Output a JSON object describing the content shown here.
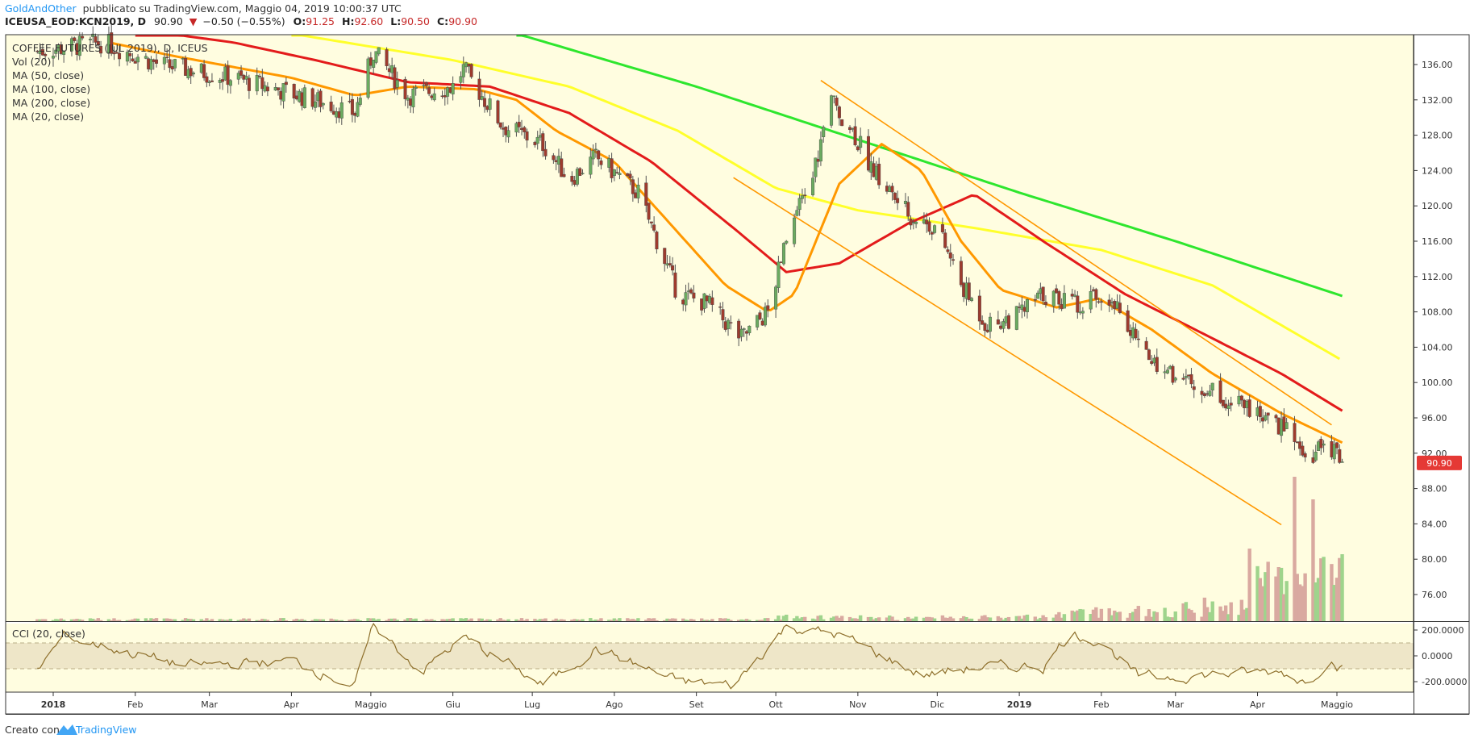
{
  "header": {
    "author": "GoldAndOther",
    "published_text": "pubblicato su TradingView.com, Maggio 04, 2019 10:00:37 UTC",
    "symbol": "ICEUSA_EOD:KCN2019, D",
    "last": "90.90",
    "change": "−0.50 (−0.55%)",
    "open_label": "O:",
    "open": "91.25",
    "high_label": "H:",
    "high": "92.60",
    "low_label": "L:",
    "low": "90.50",
    "close_label": "C:",
    "close": "90.90"
  },
  "legend": {
    "title": "COFFEE FUTURES (JUL 2019), D, ICEUS",
    "items": [
      "Vol (20)",
      "MA (50, close)",
      "MA (100, close)",
      "MA (200, close)",
      "MA (20, close)"
    ]
  },
  "price_badge": "90.90",
  "cci_panel": {
    "label": "CCI (20, close)",
    "ticks": [
      "200.0000",
      "0.0000",
      "-200.0000"
    ]
  },
  "footer": {
    "created_with": "Creato con",
    "brand": "TradingView"
  },
  "colors": {
    "background": "#fffde0",
    "up_candle": "#6bab60",
    "down_candle": "#9e3b2e",
    "ma20": "#ff9800",
    "ma50": "#e31b1b",
    "ma100": "#ffff2b",
    "ma200": "#2ee62e",
    "cci_line": "#8d6e2a",
    "cci_band": "#eee6c8",
    "channel": "#ff9800",
    "volume_up": "#9fd48c",
    "volume_down": "#d9a9a0",
    "badge": "#e53935",
    "brand_blue": "#2196f3"
  },
  "chart_data": [
    {
      "type": "candlestick",
      "title": "COFFEE FUTURES (JUL 2019), D, ICEUS",
      "x_tick_labels": [
        "2018",
        "Feb",
        "Mar",
        "Apr",
        "Maggio",
        "Giu",
        "Lug",
        "Ago",
        "Set",
        "Ott",
        "Nov",
        "Dic",
        "2019",
        "Feb",
        "Mar",
        "Apr",
        "Maggio"
      ],
      "y_tick_labels": [
        "136.00",
        "132.00",
        "128.00",
        "124.00",
        "120.00",
        "116.00",
        "112.00",
        "108.00",
        "104.00",
        "100.00",
        "96.00",
        "92.00",
        "88.00",
        "84.00",
        "80.00",
        "76.00"
      ],
      "ylim": [
        73.5,
        139.5
      ],
      "price_path": [
        {
          "date": "2017-12-26",
          "close": 137.5
        },
        {
          "date": "2018-01-20",
          "close": 138.5
        },
        {
          "date": "2018-02-10",
          "close": 136
        },
        {
          "date": "2018-03-10",
          "close": 134.5
        },
        {
          "date": "2018-04-10",
          "close": 132
        },
        {
          "date": "2018-04-25",
          "close": 130.5
        },
        {
          "date": "2018-05-02",
          "close": 137.5
        },
        {
          "date": "2018-05-15",
          "close": 132.5
        },
        {
          "date": "2018-06-01",
          "close": 133.5
        },
        {
          "date": "2018-06-05",
          "close": 135.5
        },
        {
          "date": "2018-06-20",
          "close": 129
        },
        {
          "date": "2018-07-05",
          "close": 127
        },
        {
          "date": "2018-07-15",
          "close": 123
        },
        {
          "date": "2018-07-25",
          "close": 125.5
        },
        {
          "date": "2018-08-10",
          "close": 121.5
        },
        {
          "date": "2018-08-25",
          "close": 110
        },
        {
          "date": "2018-09-05",
          "close": 109
        },
        {
          "date": "2018-09-18",
          "close": 105
        },
        {
          "date": "2018-09-28",
          "close": 108
        },
        {
          "date": "2018-10-05",
          "close": 116
        },
        {
          "date": "2018-10-15",
          "close": 123.5
        },
        {
          "date": "2018-10-22",
          "close": 132
        },
        {
          "date": "2018-10-30",
          "close": 128.5
        },
        {
          "date": "2018-11-08",
          "close": 123.5
        },
        {
          "date": "2018-11-20",
          "close": 119
        },
        {
          "date": "2018-12-01",
          "close": 117.5
        },
        {
          "date": "2018-12-10",
          "close": 111
        },
        {
          "date": "2018-12-20",
          "close": 106.5
        },
        {
          "date": "2018-12-31",
          "close": 107.5
        },
        {
          "date": "2019-01-10",
          "close": 110
        },
        {
          "date": "2019-01-22",
          "close": 109
        },
        {
          "date": "2019-02-05",
          "close": 110
        },
        {
          "date": "2019-02-15",
          "close": 104
        },
        {
          "date": "2019-03-01",
          "close": 100.5
        },
        {
          "date": "2019-03-15",
          "close": 99
        },
        {
          "date": "2019-03-28",
          "close": 97
        },
        {
          "date": "2019-04-05",
          "close": 95.5
        },
        {
          "date": "2019-04-12",
          "close": 94.5
        },
        {
          "date": "2019-04-20",
          "close": 90.5
        },
        {
          "date": "2019-04-26",
          "close": 93
        },
        {
          "date": "2019-05-03",
          "close": 90.9
        }
      ],
      "moving_averages": {
        "MA (20, close)": [
          {
            "date": "2018-01-22",
            "value": 138.5
          },
          {
            "date": "2018-02-15",
            "value": 137
          },
          {
            "date": "2018-03-05",
            "value": 136
          },
          {
            "date": "2018-04-01",
            "value": 134.5
          },
          {
            "date": "2018-04-25",
            "value": 132.5
          },
          {
            "date": "2018-05-15",
            "value": 133.5
          },
          {
            "date": "2018-06-10",
            "value": 133.2
          },
          {
            "date": "2018-06-25",
            "value": 132
          },
          {
            "date": "2018-07-10",
            "value": 128.5
          },
          {
            "date": "2018-08-01",
            "value": 125
          },
          {
            "date": "2018-08-25",
            "value": 117
          },
          {
            "date": "2018-09-12",
            "value": 111
          },
          {
            "date": "2018-09-28",
            "value": 108
          },
          {
            "date": "2018-10-08",
            "value": 110
          },
          {
            "date": "2018-10-25",
            "value": 122.5
          },
          {
            "date": "2018-11-10",
            "value": 127
          },
          {
            "date": "2018-11-25",
            "value": 124
          },
          {
            "date": "2018-12-10",
            "value": 116
          },
          {
            "date": "2018-12-25",
            "value": 110.5
          },
          {
            "date": "2019-01-15",
            "value": 108.5
          },
          {
            "date": "2019-01-31",
            "value": 109.5
          },
          {
            "date": "2019-02-20",
            "value": 106
          },
          {
            "date": "2019-03-15",
            "value": 101
          },
          {
            "date": "2019-04-10",
            "value": 96.5
          },
          {
            "date": "2019-05-03",
            "value": 93.2
          }
        ],
        "MA (50, close)": [
          {
            "date": "2018-02-01",
            "value": 140
          },
          {
            "date": "2018-03-10",
            "value": 138.5
          },
          {
            "date": "2018-04-10",
            "value": 136.5
          },
          {
            "date": "2018-05-15",
            "value": 134
          },
          {
            "date": "2018-06-15",
            "value": 133.5
          },
          {
            "date": "2018-07-15",
            "value": 130.5
          },
          {
            "date": "2018-08-15",
            "value": 125
          },
          {
            "date": "2018-09-15",
            "value": 117.5
          },
          {
            "date": "2018-10-05",
            "value": 112.5
          },
          {
            "date": "2018-10-25",
            "value": 113.5
          },
          {
            "date": "2018-11-20",
            "value": 118
          },
          {
            "date": "2018-12-15",
            "value": 121.3
          },
          {
            "date": "2019-01-10",
            "value": 116
          },
          {
            "date": "2019-02-10",
            "value": 110
          },
          {
            "date": "2019-03-15",
            "value": 105
          },
          {
            "date": "2019-04-10",
            "value": 101
          },
          {
            "date": "2019-05-03",
            "value": 96.8
          }
        ],
        "MA (100, close)": [
          {
            "date": "2018-04-01",
            "value": 139.5
          },
          {
            "date": "2018-06-01",
            "value": 136.5
          },
          {
            "date": "2018-07-15",
            "value": 133.5
          },
          {
            "date": "2018-08-25",
            "value": 128.5
          },
          {
            "date": "2018-10-01",
            "value": 122
          },
          {
            "date": "2018-11-01",
            "value": 119.5
          },
          {
            "date": "2018-12-15",
            "value": 117.5
          },
          {
            "date": "2019-02-01",
            "value": 115
          },
          {
            "date": "2019-03-15",
            "value": 111
          },
          {
            "date": "2019-05-03",
            "value": 102.5
          }
        ],
        "MA (200, close)": [
          {
            "date": "2018-06-25",
            "value": 139.5
          },
          {
            "date": "2018-09-01",
            "value": 133.5
          },
          {
            "date": "2018-11-01",
            "value": 127.5
          },
          {
            "date": "2019-01-01",
            "value": 121.5
          },
          {
            "date": "2019-03-01",
            "value": 116
          },
          {
            "date": "2019-05-03",
            "value": 109.8
          }
        ]
      },
      "trend_channel": {
        "upper": [
          {
            "date": "2018-10-18",
            "value": 134.2
          },
          {
            "date": "2019-04-29",
            "value": 95.2
          }
        ],
        "lower": [
          {
            "date": "2018-09-15",
            "value": 123.2
          },
          {
            "date": "2019-04-10",
            "value": 83.9
          }
        ]
      },
      "volume": {
        "name": "Vol (20)",
        "note": "volume is low through 2018 and rises sharply in April 2019",
        "spikes": [
          {
            "date": "2019-04-15",
            "value": "highest"
          },
          {
            "date": "2019-04-22",
            "value": "second highest"
          }
        ]
      },
      "last_price": 90.9
    },
    {
      "type": "line",
      "title": "CCI (20, close)",
      "y_tick_labels": [
        "200.0000",
        "0.0000",
        "-200.0000"
      ],
      "ylim": [
        -280,
        260
      ],
      "band": [
        -100,
        100
      ],
      "values_sketch": [
        {
          "date": "2017-12-26",
          "value": -110
        },
        {
          "date": "2018-01-05",
          "value": 150
        },
        {
          "date": "2018-02-20",
          "value": -80
        },
        {
          "date": "2018-04-01",
          "value": -40
        },
        {
          "date": "2018-04-25",
          "value": -230
        },
        {
          "date": "2018-05-02",
          "value": 230
        },
        {
          "date": "2018-05-20",
          "value": -120
        },
        {
          "date": "2018-06-05",
          "value": 140
        },
        {
          "date": "2018-07-05",
          "value": -230
        },
        {
          "date": "2018-07-25",
          "value": 60
        },
        {
          "date": "2018-08-25",
          "value": -200
        },
        {
          "date": "2018-09-15",
          "value": -230
        },
        {
          "date": "2018-10-05",
          "value": 230
        },
        {
          "date": "2018-10-25",
          "value": 160
        },
        {
          "date": "2018-11-25",
          "value": -150
        },
        {
          "date": "2018-12-15",
          "value": -90
        },
        {
          "date": "2019-01-10",
          "value": -80
        },
        {
          "date": "2019-01-20",
          "value": 170
        },
        {
          "date": "2019-02-01",
          "value": 120
        },
        {
          "date": "2019-02-15",
          "value": -170
        },
        {
          "date": "2019-04-10",
          "value": -120
        },
        {
          "date": "2019-04-20",
          "value": -210
        },
        {
          "date": "2019-04-28",
          "value": -10
        },
        {
          "date": "2019-05-03",
          "value": -100
        }
      ]
    }
  ]
}
